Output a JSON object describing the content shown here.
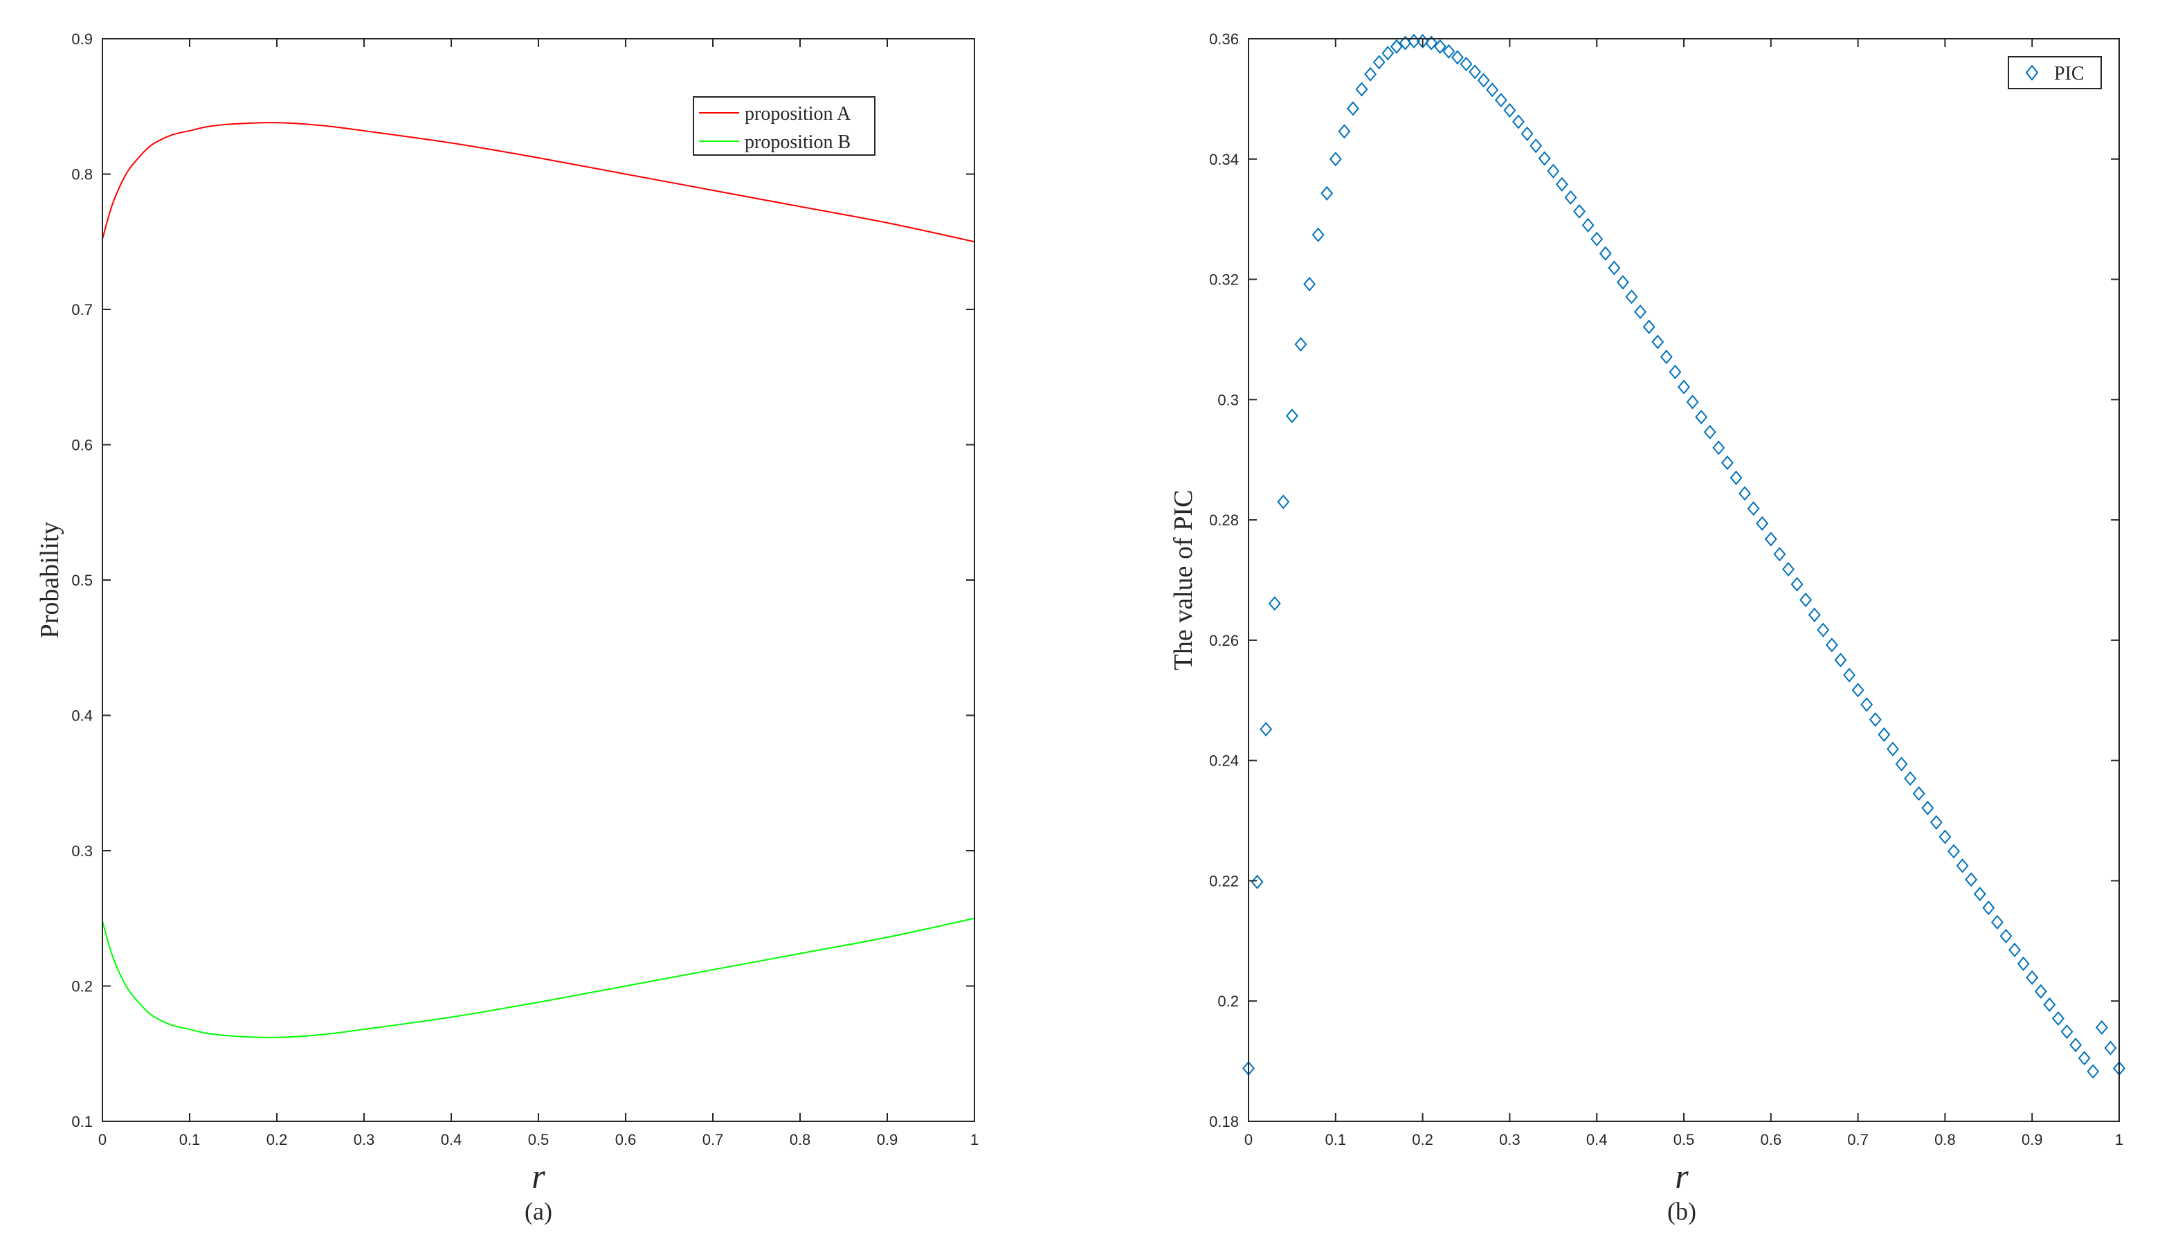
{
  "chart_data": [
    {
      "type": "line",
      "caption": "(a)",
      "xlabel": "r",
      "ylabel": "Probability",
      "xlim": [
        0,
        1
      ],
      "ylim": [
        0.1,
        0.9
      ],
      "xticks": [
        "0",
        "0.1",
        "0.2",
        "0.3",
        "0.4",
        "0.5",
        "0.6",
        "0.7",
        "0.8",
        "0.9",
        "1"
      ],
      "yticks": [
        "0.1",
        "0.2",
        "0.3",
        "0.4",
        "0.5",
        "0.6",
        "0.7",
        "0.8",
        "0.9"
      ],
      "legend_position": "top-right",
      "grid": false,
      "series": [
        {
          "name": "proposition A",
          "color": "#ff0000",
          "x": [
            0,
            0.01,
            0.02,
            0.03,
            0.04,
            0.05,
            0.06,
            0.08,
            0.1,
            0.12,
            0.15,
            0.2,
            0.25,
            0.3,
            0.4,
            0.5,
            0.6,
            0.7,
            0.8,
            0.9,
            1.0
          ],
          "y": [
            0.752,
            0.775,
            0.791,
            0.803,
            0.811,
            0.818,
            0.823,
            0.829,
            0.832,
            0.835,
            0.837,
            0.838,
            0.836,
            0.832,
            0.823,
            0.812,
            0.8,
            0.788,
            0.776,
            0.764,
            0.75
          ]
        },
        {
          "name": "proposition B",
          "color": "#00ff00",
          "x": [
            0,
            0.01,
            0.02,
            0.03,
            0.04,
            0.05,
            0.06,
            0.08,
            0.1,
            0.12,
            0.15,
            0.2,
            0.25,
            0.3,
            0.4,
            0.5,
            0.6,
            0.7,
            0.8,
            0.9,
            1.0
          ],
          "y": [
            0.248,
            0.225,
            0.209,
            0.197,
            0.189,
            0.182,
            0.177,
            0.171,
            0.168,
            0.165,
            0.163,
            0.162,
            0.164,
            0.168,
            0.177,
            0.188,
            0.2,
            0.212,
            0.224,
            0.236,
            0.25
          ]
        }
      ]
    },
    {
      "type": "scatter",
      "caption": "(b)",
      "xlabel": "r",
      "ylabel": "The value of PIC",
      "xlim": [
        0,
        1
      ],
      "ylim": [
        0.18,
        0.36
      ],
      "xticks": [
        "0",
        "0.1",
        "0.2",
        "0.3",
        "0.4",
        "0.5",
        "0.6",
        "0.7",
        "0.8",
        "0.9",
        "1"
      ],
      "yticks": [
        "0.18",
        "0.2",
        "0.22",
        "0.24",
        "0.26",
        "0.28",
        "0.3",
        "0.32",
        "0.34",
        "0.36"
      ],
      "legend_position": "top-right",
      "grid": false,
      "marker": "diamond",
      "series": [
        {
          "name": "PIC",
          "color": "#0072bd",
          "x": [
            0,
            0.01,
            0.02,
            0.03,
            0.04,
            0.05,
            0.06,
            0.07,
            0.08,
            0.09,
            0.1,
            0.11,
            0.12,
            0.13,
            0.14,
            0.15,
            0.16,
            0.17,
            0.18,
            0.19,
            0.2,
            0.21,
            0.22,
            0.23,
            0.24,
            0.25,
            0.26,
            0.27,
            0.28,
            0.29,
            0.3,
            0.31,
            0.32,
            0.33,
            0.34,
            0.35,
            0.36,
            0.37,
            0.38,
            0.39,
            0.4,
            0.41,
            0.42,
            0.43,
            0.44,
            0.45,
            0.46,
            0.47,
            0.48,
            0.49,
            0.5,
            0.51,
            0.52,
            0.53,
            0.54,
            0.55,
            0.56,
            0.57,
            0.58,
            0.59,
            0.6,
            0.61,
            0.62,
            0.63,
            0.64,
            0.65,
            0.66,
            0.67,
            0.68,
            0.69,
            0.7,
            0.71,
            0.72,
            0.73,
            0.74,
            0.75,
            0.76,
            0.77,
            0.78,
            0.79,
            0.8,
            0.81,
            0.82,
            0.83,
            0.84,
            0.85,
            0.86,
            0.87,
            0.88,
            0.89,
            0.9,
            0.91,
            0.92,
            0.93,
            0.94,
            0.95,
            0.96,
            0.97,
            0.98,
            0.99,
            1.0
          ],
          "y": [
            0.1888,
            0.2198,
            0.2452,
            0.2661,
            0.283,
            0.2973,
            0.3092,
            0.3192,
            0.3274,
            0.3343,
            0.34,
            0.3446,
            0.3484,
            0.3516,
            0.3541,
            0.3561,
            0.3576,
            0.3587,
            0.3593,
            0.3596,
            0.3596,
            0.3593,
            0.3587,
            0.3579,
            0.3569,
            0.3558,
            0.3545,
            0.3531,
            0.3515,
            0.3498,
            0.3481,
            0.3462,
            0.3442,
            0.3422,
            0.3401,
            0.338,
            0.3358,
            0.3336,
            0.3313,
            0.329,
            0.3267,
            0.3243,
            0.3219,
            0.3195,
            0.3171,
            0.3146,
            0.3121,
            0.3096,
            0.3071,
            0.3046,
            0.3021,
            0.2996,
            0.2971,
            0.2946,
            0.292,
            0.2895,
            0.287,
            0.2844,
            0.2819,
            0.2794,
            0.2768,
            0.2743,
            0.2718,
            0.2693,
            0.2667,
            0.2642,
            0.2617,
            0.2592,
            0.2567,
            0.2542,
            0.2517,
            0.2493,
            0.2468,
            0.2443,
            0.2419,
            0.2394,
            0.237,
            0.2345,
            0.2321,
            0.2297,
            0.2273,
            0.2249,
            0.2225,
            0.2202,
            0.2178,
            0.2155,
            0.2131,
            0.2108,
            0.2085,
            0.2062,
            0.2039,
            0.2016,
            0.1994,
            0.1971,
            0.1949,
            0.1927,
            0.1905,
            0.1883,
            0.1956,
            0.1922,
            0.1888
          ]
        }
      ]
    }
  ]
}
